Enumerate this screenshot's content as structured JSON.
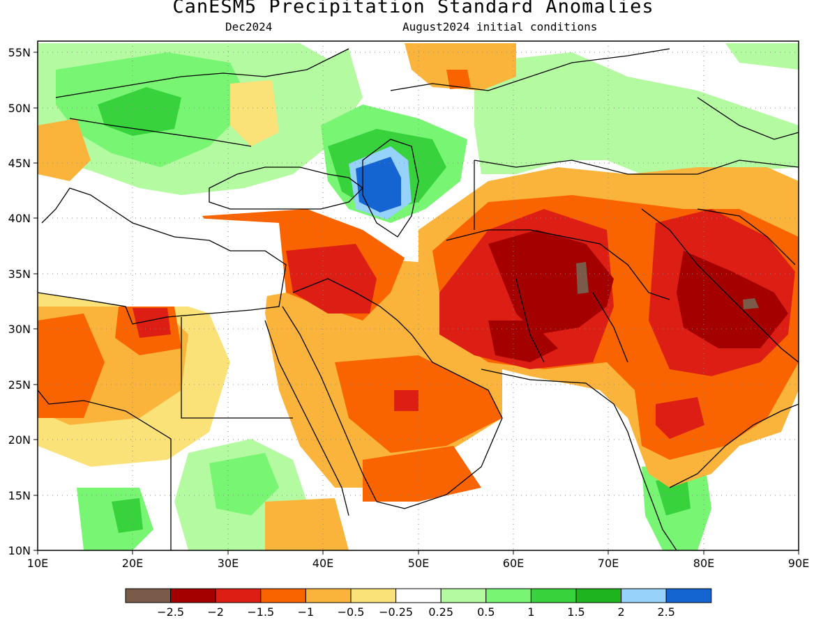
{
  "title": "CanESM5 Precipitation Standard Anomalies",
  "subtitle_left": "Dec2024",
  "subtitle_right": "August2024 initial conditions",
  "lon_ticks": [
    "10E",
    "20E",
    "30E",
    "40E",
    "50E",
    "60E",
    "70E",
    "80E",
    "90E"
  ],
  "lat_ticks": [
    "55N",
    "50N",
    "45N",
    "40N",
    "35N",
    "30N",
    "25N",
    "20N",
    "15N",
    "10N"
  ],
  "colorbar": {
    "colors": [
      "#7a5a48",
      "#a50000",
      "#dc1e14",
      "#fa6400",
      "#fab43c",
      "#fae178",
      "#ffffff",
      "#b4faa0",
      "#78f573",
      "#37d23c",
      "#1eb41e",
      "#96d2fa",
      "#1464d2"
    ],
    "labels": [
      "−2.5",
      "−2",
      "−1.5",
      "−1",
      "−0.5",
      "−0.25",
      "0.25",
      "0.5",
      "1",
      "1.5",
      "2",
      "2.5"
    ]
  },
  "chart_data": {
    "type": "heatmap",
    "title": "CanESM5 Precipitation Standard Anomalies",
    "subtitle": [
      "Dec2024",
      "August2024 initial conditions"
    ],
    "xlim": [
      10,
      90
    ],
    "ylim": [
      10,
      56
    ],
    "x_ticks": [
      "10E",
      "20E",
      "30E",
      "40E",
      "50E",
      "60E",
      "70E",
      "80E",
      "90E"
    ],
    "y_ticks": [
      "55N",
      "50N",
      "45N",
      "40N",
      "35N",
      "30N",
      "25N",
      "20N",
      "15N",
      "10N"
    ],
    "grid": true,
    "legend": "bottom",
    "levels": [
      -2.5,
      -2,
      -1.5,
      -1,
      -0.5,
      -0.25,
      0.25,
      0.5,
      1,
      1.5,
      2,
      2.5
    ],
    "regions": [
      {
        "lon": [
          60,
          70
        ],
        "lat": [
          30,
          37
        ],
        "value": -2.5
      },
      {
        "lon": [
          78,
          88
        ],
        "lat": [
          28,
          35
        ],
        "value": -2.5
      },
      {
        "lon": [
          56,
          72
        ],
        "lat": [
          27,
          40
        ],
        "value": -2
      },
      {
        "lon": [
          75,
          90
        ],
        "lat": [
          25,
          37
        ],
        "value": -2
      },
      {
        "lon": [
          41,
          46
        ],
        "lat": [
          30,
          36
        ],
        "value": -1.5
      },
      {
        "lon": [
          44,
          48
        ],
        "lat": [
          41,
          45
        ],
        "value": 2.5
      },
      {
        "lon": [
          10,
          40
        ],
        "lat": [
          46,
          53
        ],
        "value": 1
      },
      {
        "lon": [
          77,
          80
        ],
        "lat": [
          11,
          16
        ],
        "value": 1
      },
      {
        "lon": [
          20,
          26
        ],
        "lat": [
          11,
          16
        ],
        "value": 1
      }
    ]
  }
}
